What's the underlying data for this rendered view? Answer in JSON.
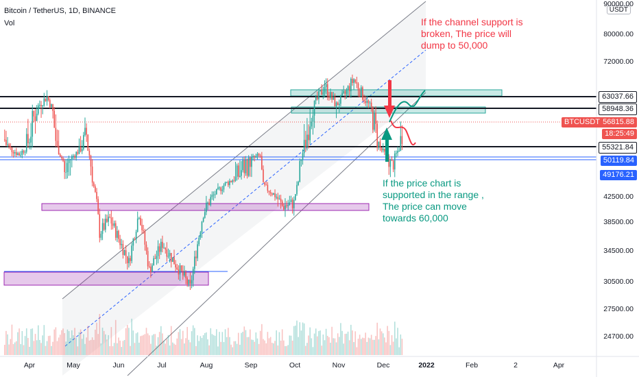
{
  "header": {
    "symbol": "Bitcoin / TetherUS, 1D, BINANCE",
    "vol": "Vol"
  },
  "currency": "USDT",
  "annotations": {
    "red_note": "If the channel support is\nbroken, The price will\ndump to 50,000",
    "green_note": "If the price chart is\nsupported in the range ,\nThe price can move\ntowards 60,000"
  },
  "colors": {
    "up": "#26a69a",
    "down": "#ef5350",
    "level_line": "#131722",
    "blue_line": "#2962ff",
    "zone_green": "#26a69a",
    "zone_purple": "#9c27b0",
    "channel": "#787b86",
    "note_red": "#f23645",
    "note_green": "#089981"
  },
  "price_tags": [
    {
      "label": "63037.66",
      "style": "dark"
    },
    {
      "label": "58948.36",
      "style": "dark"
    },
    {
      "label": "BTCUSDT",
      "style": "red"
    },
    {
      "label": "56815.88",
      "style": "red"
    },
    {
      "label": "18:25:49",
      "style": "red"
    },
    {
      "label": "55321.84",
      "style": "dark"
    },
    {
      "label": "50119.84",
      "style": "blue"
    },
    {
      "label": "49176.21",
      "style": "blue"
    }
  ],
  "chart_data": {
    "type": "candlestick",
    "symbol": "BTCUSDT",
    "timeframe": "1D",
    "exchange": "BINANCE",
    "last_price": 56815.88,
    "countdown": "18:25:49",
    "y_ticks": [
      "90000.00",
      "80000.00",
      "72000.00",
      "55321.84",
      "42500.00",
      "38500.00",
      "34500.00",
      "30500.00",
      "27500.00",
      "24700.00"
    ],
    "x_ticks": [
      "Apr",
      "May",
      "Jun",
      "Jul",
      "Aug",
      "Sep",
      "Oct",
      "Nov",
      "Dec",
      "2022",
      "Feb",
      "2",
      "Apr"
    ],
    "horizontal_levels": [
      63037.66,
      58948.36,
      55321.84
    ],
    "blue_levels": [
      50119.84,
      49176.21
    ],
    "zones": [
      {
        "color": "green",
        "from": [
          59600,
          62500
        ],
        "label": ""
      },
      {
        "color": "green",
        "from": [
          57800,
          59200
        ],
        "label": ""
      },
      {
        "color": "purple",
        "from": [
          40300,
          41400
        ],
        "label": ""
      },
      {
        "color": "purple",
        "from": [
          30200,
          31800
        ],
        "label": ""
      }
    ],
    "close_path": [
      [
        "2021-03-15",
        56000
      ],
      [
        "2021-03-25",
        52500
      ],
      [
        "2021-04-13",
        63000
      ],
      [
        "2021-04-25",
        49000
      ],
      [
        "2021-05-10",
        56500
      ],
      [
        "2021-05-19",
        37000
      ],
      [
        "2021-05-26",
        39000
      ],
      [
        "2021-06-08",
        33000
      ],
      [
        "2021-06-15",
        40000
      ],
      [
        "2021-06-22",
        32000
      ],
      [
        "2021-07-01",
        35500
      ],
      [
        "2021-07-20",
        29800
      ],
      [
        "2021-07-29",
        40000
      ],
      [
        "2021-08-13",
        46500
      ],
      [
        "2021-08-24",
        49500
      ],
      [
        "2021-09-06",
        52000
      ],
      [
        "2021-09-08",
        46000
      ],
      [
        "2021-09-21",
        41000
      ],
      [
        "2021-09-29",
        41500
      ],
      [
        "2021-10-06",
        55000
      ],
      [
        "2021-10-20",
        66000
      ],
      [
        "2021-10-28",
        60000
      ],
      [
        "2021-11-09",
        67500
      ],
      [
        "2021-11-25",
        56000
      ],
      [
        "2021-12-05",
        49500
      ],
      [
        "2021-12-12",
        56815.88
      ]
    ]
  }
}
